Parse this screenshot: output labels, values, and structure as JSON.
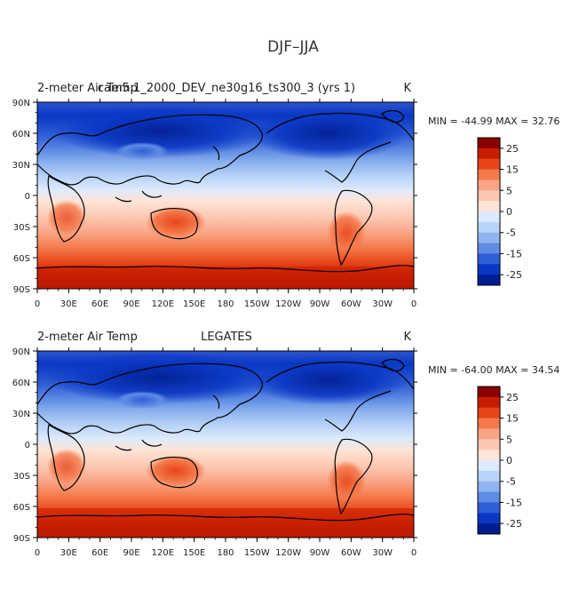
{
  "page": {
    "title": "DJF–JJA"
  },
  "chart_data": [
    {
      "type": "heatmap",
      "title_left": "2-meter Air Temp",
      "title_center": "cam5.1_2000_DEV_ne30g16_ts300_3 (yrs 1)",
      "units": "K",
      "stats_text": "MIN = -44.99 MAX =  32.76",
      "min": -44.99,
      "max": 32.76,
      "xlabel": "",
      "ylabel": "",
      "x_ticks": [
        "0",
        "30E",
        "60E",
        "90E",
        "120E",
        "150E",
        "180",
        "150W",
        "120W",
        "90W",
        "60W",
        "30W",
        "0"
      ],
      "y_ticks": [
        "90N",
        "60N",
        "30N",
        "0",
        "30S",
        "60S",
        "90S"
      ],
      "xlim": [
        0,
        360
      ],
      "ylim": [
        -90,
        90
      ],
      "colorbar_labels": [
        "25",
        "15",
        "5",
        "0",
        "-5",
        "-15",
        "-25"
      ],
      "colorbar_colors": [
        "#8a0000",
        "#c81e00",
        "#e8441a",
        "#f47a4c",
        "#f9a585",
        "#fcc7b1",
        "#fde4d6",
        "#ddeafc",
        "#b9d3f8",
        "#8fb4ef",
        "#5f8ce4",
        "#2f5ed6",
        "#0a37c4",
        "#001d90"
      ],
      "grid": false,
      "legend": "right"
    },
    {
      "type": "heatmap",
      "title_left": "2-meter Air Temp",
      "title_center": "LEGATES",
      "units": "K",
      "stats_text": "MIN = -64.00 MAX =  34.54",
      "min": -64.0,
      "max": 34.54,
      "xlabel": "",
      "ylabel": "",
      "x_ticks": [
        "0",
        "30E",
        "60E",
        "90E",
        "120E",
        "150E",
        "180",
        "150W",
        "120W",
        "90W",
        "60W",
        "30W",
        "0"
      ],
      "y_ticks": [
        "90N",
        "60N",
        "30N",
        "0",
        "30S",
        "60S",
        "90S"
      ],
      "xlim": [
        0,
        360
      ],
      "ylim": [
        -90,
        90
      ],
      "colorbar_labels": [
        "25",
        "15",
        "5",
        "0",
        "-5",
        "-15",
        "-25"
      ],
      "colorbar_colors": [
        "#8a0000",
        "#c81e00",
        "#e8441a",
        "#f47a4c",
        "#f9a585",
        "#fcc7b1",
        "#fde4d6",
        "#ddeafc",
        "#b9d3f8",
        "#8fb4ef",
        "#5f8ce4",
        "#2f5ed6",
        "#0a37c4",
        "#001d90"
      ],
      "grid": false,
      "legend": "right"
    }
  ]
}
